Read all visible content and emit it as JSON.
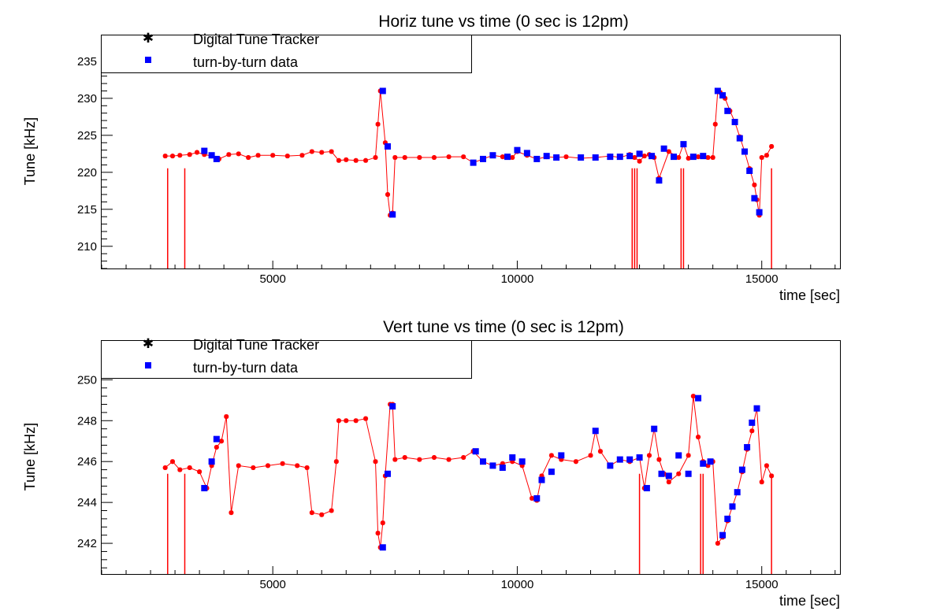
{
  "colors": {
    "tracker": "#ff0000",
    "tbt": "#0000ff",
    "axis": "#000000",
    "background": "#ffffff"
  },
  "legend": {
    "tracker_label": "Digital Tune Tracker",
    "tbt_label": "turn-by-turn data"
  },
  "chart_data": [
    {
      "type": "scatter",
      "title": "Horiz tune vs time (0 sec is 12pm)",
      "xlabel": "time [sec]",
      "ylabel": "Tune [kHz]",
      "xlim": [
        1500,
        16600
      ],
      "ylim": [
        207,
        238.5
      ],
      "x_ticks": [
        5000,
        10000,
        15000
      ],
      "y_ticks": [
        210,
        215,
        220,
        225,
        230,
        235
      ],
      "grid": false,
      "legend_position": "top-left",
      "series": [
        {
          "name": "Digital Tune Tracker",
          "marker": "star",
          "x": [
            2800,
            2950,
            3100,
            3300,
            3450,
            3600,
            3750,
            3900,
            4100,
            4300,
            4500,
            4700,
            5000,
            5300,
            5600,
            5800,
            6000,
            6200,
            6350,
            6500,
            6700,
            6900,
            7100,
            7150,
            7200,
            7300,
            7350,
            7400,
            7450,
            7500,
            7700,
            8000,
            8300,
            8600,
            8900,
            9100,
            9300,
            9500,
            9700,
            9900,
            10000,
            10200,
            10400,
            10600,
            10800,
            11000,
            11300,
            11600,
            11900,
            12100,
            12300,
            12400,
            12500,
            12600,
            12700,
            12800,
            12900,
            13100,
            13300,
            13400,
            13500,
            13700,
            13900,
            14000,
            14050,
            14100,
            14150,
            14250,
            14350,
            14450,
            14550,
            14650,
            14750,
            14850,
            14900,
            14950,
            15000,
            15100,
            15200
          ],
          "y": [
            222.2,
            222.2,
            222.3,
            222.4,
            222.7,
            222.4,
            222.2,
            221.8,
            222.4,
            222.5,
            222.0,
            222.3,
            222.3,
            222.2,
            222.3,
            222.8,
            222.7,
            222.8,
            221.6,
            221.7,
            221.6,
            221.6,
            222.0,
            226.5,
            231.0,
            224.0,
            217.0,
            214.2,
            214.5,
            222.0,
            222.0,
            222.0,
            222.0,
            222.1,
            222.1,
            221.3,
            221.8,
            222.3,
            222.1,
            222.0,
            222.8,
            222.3,
            221.8,
            222.1,
            222.0,
            222.1,
            221.9,
            222.0,
            222.2,
            222.0,
            222.4,
            222.0,
            221.5,
            222.2,
            222.4,
            222.0,
            219.2,
            222.8,
            222.0,
            223.8,
            221.9,
            222.1,
            222.0,
            222.0,
            226.5,
            231.0,
            230.8,
            230.0,
            228.3,
            226.8,
            224.8,
            222.8,
            220.5,
            218.3,
            216.3,
            214.2,
            222.0,
            222.3,
            223.5
          ],
          "drops": [
            2850,
            3200,
            12350,
            12400,
            12450,
            13350,
            13400,
            15200
          ]
        },
        {
          "name": "turn-by-turn data",
          "marker": "square",
          "x": [
            3600,
            3750,
            3850,
            7250,
            7350,
            7450,
            9100,
            9300,
            9500,
            9800,
            10000,
            10200,
            10400,
            10600,
            10800,
            11300,
            11600,
            11900,
            12100,
            12300,
            12500,
            12750,
            12900,
            13000,
            13200,
            13400,
            13600,
            13800,
            14100,
            14200,
            14300,
            14450,
            14550,
            14650,
            14750,
            14850,
            14950
          ],
          "y": [
            222.9,
            222.3,
            221.8,
            231.0,
            223.5,
            214.3,
            221.3,
            221.8,
            222.3,
            222.1,
            223.0,
            222.6,
            221.8,
            222.2,
            222.0,
            222.0,
            222.0,
            222.1,
            222.1,
            222.2,
            222.5,
            222.2,
            218.9,
            223.2,
            222.1,
            223.8,
            222.1,
            222.2,
            231.0,
            230.4,
            228.3,
            226.8,
            224.6,
            222.8,
            220.2,
            216.5,
            214.6
          ]
        }
      ]
    },
    {
      "type": "scatter",
      "title": "Vert tune vs time (0 sec is 12pm)",
      "xlabel": "time [sec]",
      "ylabel": "Tune [kHz]",
      "xlim": [
        1500,
        16600
      ],
      "ylim": [
        240.5,
        251.9
      ],
      "x_ticks": [
        5000,
        10000,
        15000
      ],
      "y_ticks": [
        242,
        244,
        246,
        248,
        250
      ],
      "grid": false,
      "legend_position": "top-left",
      "series": [
        {
          "name": "Digital Tune Tracker",
          "marker": "star",
          "x": [
            2800,
            2950,
            3100,
            3300,
            3500,
            3650,
            3750,
            3850,
            3950,
            4050,
            4150,
            4300,
            4600,
            4900,
            5200,
            5500,
            5700,
            5800,
            6000,
            6200,
            6300,
            6350,
            6500,
            6700,
            6900,
            7100,
            7150,
            7200,
            7250,
            7300,
            7400,
            7450,
            7500,
            7700,
            8000,
            8300,
            8600,
            8900,
            9100,
            9300,
            9500,
            9700,
            9900,
            10100,
            10300,
            10400,
            10500,
            10700,
            10900,
            11200,
            11500,
            11600,
            11700,
            11900,
            12100,
            12300,
            12500,
            12600,
            12700,
            12800,
            12900,
            13000,
            13100,
            13300,
            13500,
            13600,
            13700,
            13800,
            13900,
            14000,
            14100,
            14200,
            14300,
            14400,
            14500,
            14600,
            14700,
            14800,
            14900,
            15000,
            15100,
            15200
          ],
          "y": [
            245.7,
            246.0,
            245.6,
            245.7,
            245.5,
            244.7,
            245.8,
            246.7,
            247.0,
            248.2,
            243.5,
            245.8,
            245.7,
            245.8,
            245.9,
            245.8,
            245.7,
            243.5,
            243.4,
            243.6,
            246.0,
            248.0,
            248.0,
            248.0,
            248.1,
            246.0,
            242.5,
            241.8,
            243.0,
            245.3,
            248.8,
            248.8,
            246.1,
            246.2,
            246.1,
            246.2,
            246.1,
            246.2,
            246.5,
            246.0,
            245.8,
            245.9,
            246.0,
            245.8,
            244.2,
            244.1,
            245.3,
            246.3,
            246.1,
            246.0,
            246.3,
            247.5,
            246.5,
            245.8,
            246.1,
            246.0,
            246.2,
            244.7,
            246.3,
            247.6,
            246.1,
            245.4,
            245.0,
            245.4,
            246.3,
            249.2,
            247.2,
            246.0,
            245.8,
            246.0,
            242.0,
            242.3,
            243.1,
            243.8,
            244.5,
            245.5,
            246.6,
            247.5,
            248.6,
            245.0,
            245.8,
            245.3
          ],
          "drops": [
            2850,
            3200,
            12500,
            13750,
            13800,
            15200
          ]
        },
        {
          "name": "turn-by-turn data",
          "marker": "square",
          "x": [
            3600,
            3750,
            3850,
            7250,
            7350,
            7450,
            9150,
            9300,
            9500,
            9700,
            9900,
            10100,
            10400,
            10500,
            10700,
            10900,
            11600,
            11900,
            12100,
            12300,
            12500,
            12650,
            12800,
            12950,
            13100,
            13300,
            13500,
            13700,
            13800,
            13950,
            14200,
            14300,
            14400,
            14500,
            14600,
            14700,
            14800,
            14900
          ],
          "y": [
            244.7,
            246.0,
            247.1,
            241.8,
            245.4,
            248.7,
            246.5,
            246.0,
            245.8,
            245.7,
            246.2,
            246.0,
            244.2,
            245.1,
            245.5,
            246.3,
            247.5,
            245.8,
            246.1,
            246.1,
            246.2,
            244.7,
            247.6,
            245.4,
            245.3,
            246.3,
            245.4,
            249.1,
            245.9,
            246.0,
            242.4,
            243.2,
            243.8,
            244.5,
            245.6,
            246.7,
            247.9,
            248.6
          ]
        }
      ]
    }
  ]
}
